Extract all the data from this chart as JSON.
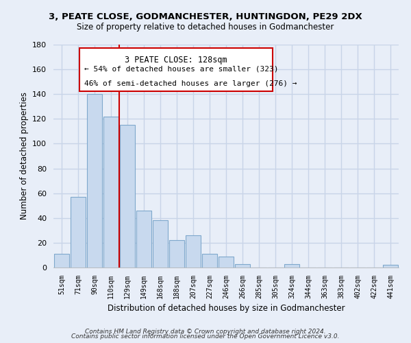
{
  "title": "3, PEATE CLOSE, GODMANCHESTER, HUNTINGDON, PE29 2DX",
  "subtitle": "Size of property relative to detached houses in Godmanchester",
  "xlabel": "Distribution of detached houses by size in Godmanchester",
  "ylabel": "Number of detached properties",
  "bar_labels": [
    "51sqm",
    "71sqm",
    "90sqm",
    "110sqm",
    "129sqm",
    "149sqm",
    "168sqm",
    "188sqm",
    "207sqm",
    "227sqm",
    "246sqm",
    "266sqm",
    "285sqm",
    "305sqm",
    "324sqm",
    "344sqm",
    "363sqm",
    "383sqm",
    "402sqm",
    "422sqm",
    "441sqm"
  ],
  "bar_values": [
    11,
    57,
    140,
    122,
    115,
    46,
    38,
    22,
    26,
    11,
    9,
    3,
    0,
    0,
    3,
    0,
    0,
    0,
    0,
    0,
    2
  ],
  "bar_color": "#c8d9ee",
  "bar_edge_color": "#7fa8cc",
  "vline_color": "#cc0000",
  "annotation_title": "3 PEATE CLOSE: 128sqm",
  "annotation_line1": "← 54% of detached houses are smaller (323)",
  "annotation_line2": "46% of semi-detached houses are larger (276) →",
  "ylim": [
    0,
    180
  ],
  "yticks": [
    0,
    20,
    40,
    60,
    80,
    100,
    120,
    140,
    160,
    180
  ],
  "background_color": "#e8eef8",
  "grid_color": "#c8d4e8",
  "footer1": "Contains HM Land Registry data © Crown copyright and database right 2024.",
  "footer2": "Contains public sector information licensed under the Open Government Licence v3.0."
}
